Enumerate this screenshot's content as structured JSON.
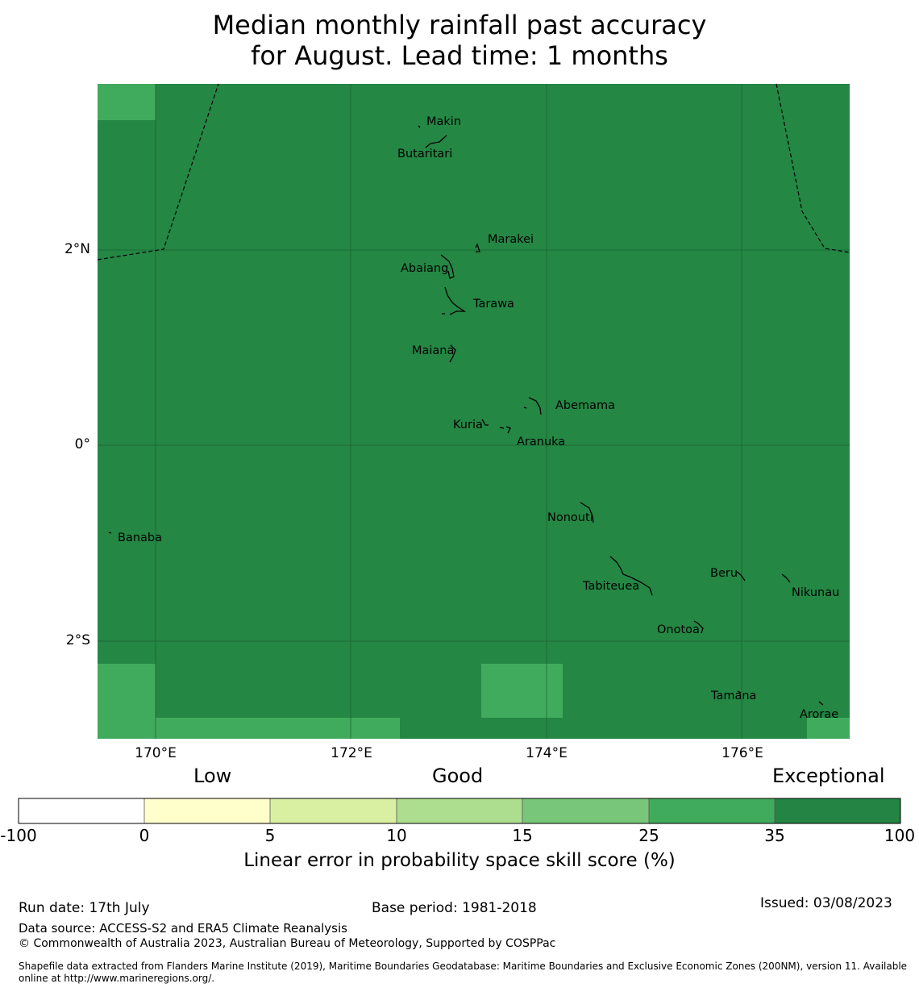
{
  "title": {
    "line1": "Median monthly rainfall past accuracy",
    "line2": "for August. Lead time: 1 months"
  },
  "map": {
    "base_color": "#248744",
    "lighter_color": "#41ab5d",
    "latitude_labels": [
      "2°N",
      "0°",
      "2°S"
    ],
    "longitude_labels": [
      "170°E",
      "172°E",
      "174°E",
      "176°E"
    ],
    "islands": [
      "Makin",
      "Butaritari",
      "Marakei",
      "Abaiang",
      "Tarawa",
      "Maiana",
      "Abemama",
      "Kuria",
      "Aranuka",
      "Nonouti",
      "Banaba",
      "Beru",
      "Tabiteuea",
      "Nikunau",
      "Onotoa",
      "Tamana",
      "Arorae"
    ]
  },
  "colorbar": {
    "categories": [
      "Low",
      "Good",
      "Exceptional"
    ],
    "ticks": [
      "-100",
      "0",
      "5",
      "10",
      "15",
      "25",
      "35",
      "100"
    ],
    "colors": [
      "#ffffff",
      "#ffffcc",
      "#d9f0a3",
      "#addd8e",
      "#78c679",
      "#41ab5d",
      "#238443"
    ],
    "label": "Linear error in probability space skill score (%)"
  },
  "footer": {
    "run_date": "Run date: 17th July",
    "base_period": "Base period: 1981-2018",
    "issued": "Issued: 03/08/2023",
    "data_source": "Data source: ACCESS-S2 and ERA5 Climate Reanalysis",
    "copyright": "© Commonwealth of Australia 2023, Australian Bureau of Meteorology, Supported by COSPPac",
    "shapefile_line1": "Shapefile data extracted from Flanders Marine Institute (2019), Maritime Boundaries Geodatabase: Maritime Boundaries and Exclusive Economic Zones (200NM), version 11. Available",
    "shapefile_line2": "online at http://www.marineregions.org/."
  }
}
